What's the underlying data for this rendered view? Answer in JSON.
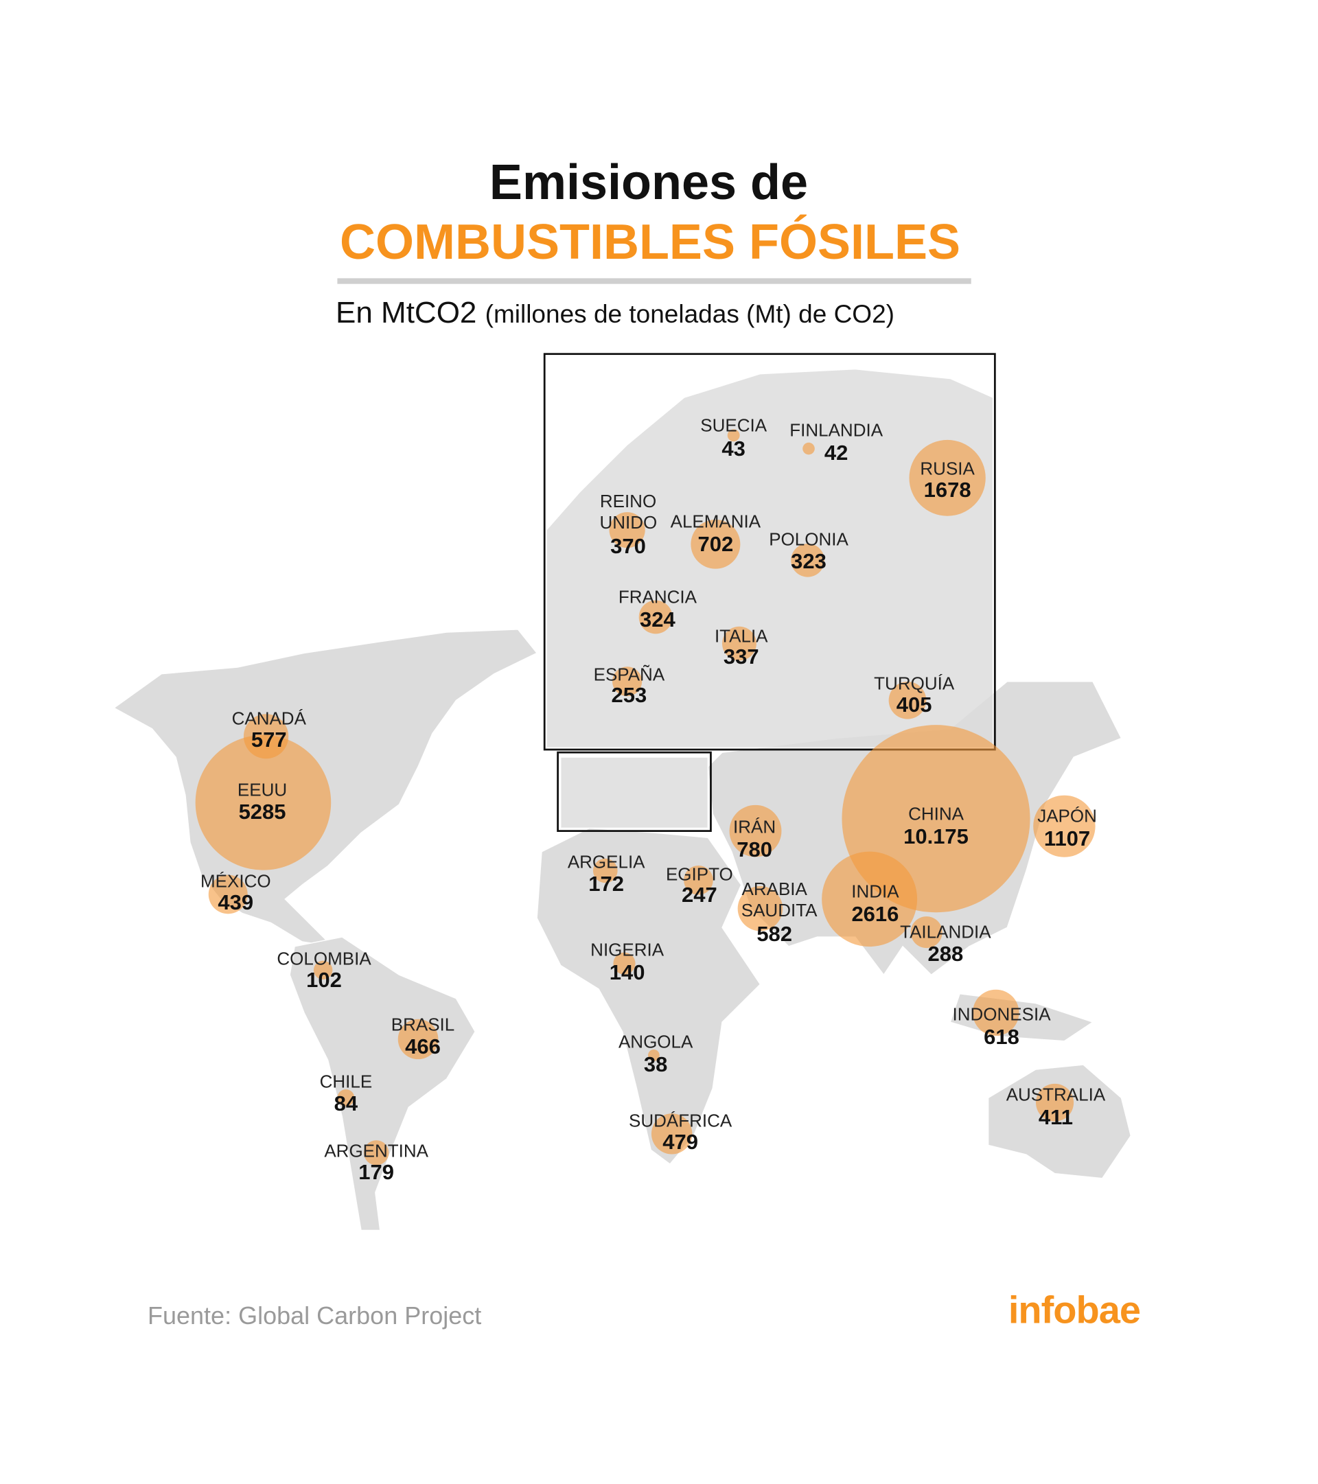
{
  "chart_data": {
    "type": "bubble-map",
    "title": "Emisiones de",
    "title_highlight": "COMBUSTIBLES FÓSILES",
    "subtitle": "En MtCO2",
    "subtitle_note": "(millones de toneladas (Mt) de CO2)",
    "source": "Fuente: Global Carbon Project",
    "brand": "infobae",
    "color": "#f39a3c",
    "categories": [
      "CANADÁ",
      "EEUU",
      "MÉXICO",
      "COLOMBIA",
      "BRASIL",
      "CHILE",
      "ARGENTINA",
      "ARGELIA",
      "EGIPTO",
      "IRÁN",
      "ARABIA SAUDITA",
      "NIGERIA",
      "ANGOLA",
      "SUDÁFRICA",
      "INDIA",
      "CHINA",
      "JAPÓN",
      "TAILANDIA",
      "INDONESIA",
      "AUSTRALIA",
      "SUECIA",
      "FINLANDIA",
      "RUSIA",
      "REINO UNIDO",
      "ALEMANIA",
      "POLONIA",
      "FRANCIA",
      "ITALIA",
      "ESPAÑA",
      "TURQUÍA"
    ],
    "values": [
      577,
      5285,
      439,
      102,
      466,
      84,
      179,
      172,
      247,
      780,
      582,
      140,
      38,
      479,
      2616,
      10175,
      1107,
      288,
      618,
      411,
      43,
      42,
      1678,
      370,
      702,
      323,
      324,
      337,
      253,
      405
    ],
    "value_labels": [
      "577",
      "5285",
      "439",
      "102",
      "466",
      "84",
      "179",
      "172",
      "247",
      "780",
      "582",
      "140",
      "38",
      "479",
      "2616",
      "10.175",
      "1107",
      "288",
      "618",
      "411",
      "43",
      "42",
      "1678",
      "370",
      "702",
      "323",
      "324",
      "337",
      "253",
      "405"
    ]
  }
}
